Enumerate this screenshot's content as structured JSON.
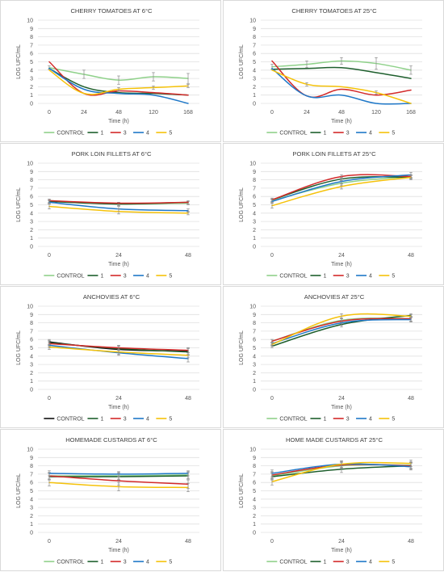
{
  "colors": {
    "CONTROL": "#8fd18a",
    "1": "#1e5f2d",
    "3": "#d32a2a",
    "4": "#1f78c8",
    "5": "#f5c20a",
    "CONTROL_dark": "#111111"
  },
  "chart_data": [
    {
      "type": "line",
      "title": "CHERRY TOMATOES AT 6°C",
      "xlabel": "Time (h)",
      "ylabel": "LOG UFC/mL",
      "categories": [
        "0",
        "24",
        "48",
        "120",
        "168"
      ],
      "ylim": [
        0,
        10
      ],
      "yticks": [
        "0",
        "1",
        "2",
        "3",
        "4",
        "5",
        "6",
        "7",
        "8",
        "9",
        "10"
      ],
      "grid": true,
      "legend": "bottom",
      "legend_labels": [
        "CONTROL",
        "1",
        "3",
        "4",
        "5"
      ],
      "series": [
        {
          "name": "CONTROL",
          "color_key": "CONTROL",
          "values": [
            4.3,
            3.5,
            2.8,
            3.2,
            3.0
          ],
          "err": [
            0.2,
            0.5,
            0.5,
            0.5,
            0.6
          ]
        },
        {
          "name": "1",
          "color_key": "1",
          "values": [
            4.2,
            2.0,
            1.3,
            1.2,
            1.0
          ],
          "err": [
            0,
            0,
            0,
            0,
            0
          ]
        },
        {
          "name": "3",
          "color_key": "3",
          "values": [
            5.0,
            1.2,
            1.5,
            1.3,
            1.0
          ],
          "err": [
            0,
            0,
            0,
            0,
            0
          ]
        },
        {
          "name": "4",
          "color_key": "4",
          "values": [
            4.2,
            1.7,
            1.2,
            1.0,
            0.0
          ],
          "err": [
            0,
            0,
            0,
            0,
            0
          ]
        },
        {
          "name": "5",
          "color_key": "5",
          "values": [
            4.0,
            1.2,
            1.7,
            1.9,
            2.1
          ],
          "err": [
            0,
            0,
            0.2,
            0.2,
            0.2
          ]
        }
      ]
    },
    {
      "type": "line",
      "title": "CHERRY TOMATOES AT 25°C",
      "xlabel": "Time (h)",
      "ylabel": "LOG UFC/mL",
      "categories": [
        "0",
        "24",
        "48",
        "120",
        "168"
      ],
      "ylim": [
        0,
        10
      ],
      "yticks": [
        "0",
        "1",
        "2",
        "3",
        "4",
        "5",
        "6",
        "7",
        "8",
        "9",
        "10"
      ],
      "grid": true,
      "legend": "bottom",
      "legend_labels": [
        "CONTROL",
        "1",
        "3",
        "4",
        "5"
      ],
      "series": [
        {
          "name": "CONTROL",
          "color_key": "CONTROL",
          "values": [
            4.4,
            4.7,
            5.1,
            4.8,
            4.0
          ],
          "err": [
            0.3,
            0.4,
            0.4,
            0.7,
            0.5
          ]
        },
        {
          "name": "1",
          "color_key": "1",
          "values": [
            4.1,
            4.2,
            4.3,
            3.7,
            3.0
          ],
          "err": [
            0,
            0,
            0,
            0,
            0
          ]
        },
        {
          "name": "3",
          "color_key": "3",
          "values": [
            5.1,
            0.9,
            1.7,
            1.0,
            1.6
          ],
          "err": [
            0,
            0,
            0,
            0,
            0
          ]
        },
        {
          "name": "4",
          "color_key": "4",
          "values": [
            4.2,
            0.9,
            1.0,
            0.0,
            0.0
          ],
          "err": [
            0,
            0,
            0,
            0,
            0
          ]
        },
        {
          "name": "5",
          "color_key": "5",
          "values": [
            4.0,
            2.3,
            2.0,
            1.3,
            0.0
          ],
          "err": [
            0,
            0.2,
            0,
            0.2,
            0
          ]
        }
      ]
    },
    {
      "type": "line",
      "title": "PORK LOIN FILLETS AT 6°C",
      "xlabel": "Time (h)",
      "ylabel": "LOG UFC/mL",
      "categories": [
        "0",
        "24",
        "48"
      ],
      "ylim": [
        0,
        10
      ],
      "yticks": [
        "0",
        "1",
        "2",
        "3",
        "4",
        "5",
        "6",
        "7",
        "8",
        "9",
        "10"
      ],
      "grid": true,
      "legend": "bottom",
      "legend_labels": [
        "CONTROL",
        "1",
        "3",
        "4",
        "5"
      ],
      "series": [
        {
          "name": "CONTROL",
          "color_key": "CONTROL",
          "values": [
            5.5,
            5.1,
            5.2
          ],
          "err": [
            0.2,
            0.2,
            0.2
          ]
        },
        {
          "name": "1",
          "color_key": "1",
          "values": [
            5.4,
            5.1,
            5.3
          ],
          "err": [
            0.2,
            0.2,
            0.2
          ]
        },
        {
          "name": "3",
          "color_key": "3",
          "values": [
            5.5,
            5.2,
            5.3
          ],
          "err": [
            0,
            0,
            0
          ]
        },
        {
          "name": "4",
          "color_key": "4",
          "values": [
            5.3,
            4.5,
            4.3
          ],
          "err": [
            0.2,
            0.3,
            0.2
          ]
        },
        {
          "name": "5",
          "color_key": "5",
          "values": [
            4.8,
            4.2,
            4.0
          ],
          "err": [
            0.3,
            0.3,
            0.2
          ]
        }
      ]
    },
    {
      "type": "line",
      "title": "PORK LOIN FILLETS AT 25°C",
      "xlabel": "Time (h)",
      "ylabel": "LOG UFC/mL",
      "categories": [
        "0",
        "24",
        "48"
      ],
      "ylim": [
        0,
        10
      ],
      "yticks": [
        "0",
        "1",
        "2",
        "3",
        "4",
        "5",
        "6",
        "7",
        "8",
        "9",
        "10"
      ],
      "grid": true,
      "legend": "bottom",
      "legend_labels": [
        "CONTROL",
        "1",
        "3",
        "4",
        "5"
      ],
      "series": [
        {
          "name": "CONTROL",
          "color_key": "CONTROL",
          "values": [
            5.5,
            7.6,
            8.4
          ],
          "err": [
            0.2,
            0.3,
            0.2
          ]
        },
        {
          "name": "1",
          "color_key": "1",
          "values": [
            5.6,
            8.1,
            8.3
          ],
          "err": [
            0.2,
            0.2,
            0.2
          ]
        },
        {
          "name": "3",
          "color_key": "3",
          "values": [
            5.6,
            8.4,
            8.4
          ],
          "err": [
            0.2,
            0.2,
            0.2
          ]
        },
        {
          "name": "4",
          "color_key": "4",
          "values": [
            5.4,
            7.8,
            8.6
          ],
          "err": [
            0.2,
            0.3,
            0.3
          ]
        },
        {
          "name": "5",
          "color_key": "5",
          "values": [
            4.9,
            7.2,
            8.3
          ],
          "err": [
            0.3,
            0.3,
            0.3
          ]
        }
      ]
    },
    {
      "type": "line",
      "title": "ANCHOVIES AT 6°C",
      "xlabel": "Time (h)",
      "ylabel": "LOG UFC/mL",
      "categories": [
        "0",
        "24",
        "48"
      ],
      "ylim": [
        0,
        10
      ],
      "yticks": [
        "0",
        "1",
        "2",
        "3",
        "4",
        "5",
        "6",
        "7",
        "8",
        "9",
        "10"
      ],
      "grid": true,
      "legend": "bottom",
      "legend_labels": [
        "CONTROL",
        "1",
        "3",
        "4",
        "5"
      ],
      "legend_control_color_key": "CONTROL_dark",
      "series": [
        {
          "name": "CONTROL",
          "color_key": "CONTROL_dark",
          "values": [
            5.7,
            4.8,
            4.6
          ],
          "err": [
            0.3,
            0.4,
            0.4
          ]
        },
        {
          "name": "1",
          "color_key": "1",
          "values": [
            5.6,
            4.9,
            4.5
          ],
          "err": [
            0.3,
            0.4,
            0.4
          ]
        },
        {
          "name": "3",
          "color_key": "3",
          "values": [
            5.5,
            5.0,
            4.7
          ],
          "err": [
            0.3,
            0.3,
            0.3
          ]
        },
        {
          "name": "4",
          "color_key": "4",
          "values": [
            5.3,
            4.4,
            3.7
          ],
          "err": [
            0.3,
            0.3,
            0.4
          ]
        },
        {
          "name": "5",
          "color_key": "5",
          "values": [
            5.1,
            4.5,
            4.1
          ],
          "err": [
            0.3,
            0.3,
            0.3
          ]
        }
      ]
    },
    {
      "type": "line",
      "title": "ANCHOVIES AT 25°C",
      "xlabel": "Time (h)",
      "ylabel": "LOG UFC/mL",
      "categories": [
        "0",
        "24",
        "48"
      ],
      "ylim": [
        0,
        10
      ],
      "yticks": [
        "0",
        "1",
        "2",
        "3",
        "4",
        "5",
        "6",
        "7",
        "8",
        "9",
        "10"
      ],
      "grid": true,
      "legend": "bottom",
      "legend_labels": [
        "CONTROL",
        "1",
        "3",
        "4",
        "5"
      ],
      "series": [
        {
          "name": "CONTROL",
          "color_key": "CONTROL",
          "values": [
            5.8,
            8.3,
            8.5
          ],
          "err": [
            0.2,
            0.3,
            0.3
          ]
        },
        {
          "name": "1",
          "color_key": "1",
          "values": [
            5.2,
            7.8,
            8.9
          ],
          "err": [
            0.2,
            0.3,
            0.2
          ]
        },
        {
          "name": "3",
          "color_key": "3",
          "values": [
            5.8,
            8.2,
            8.5
          ],
          "err": [
            0.2,
            0.3,
            0.3
          ]
        },
        {
          "name": "4",
          "color_key": "4",
          "values": [
            5.5,
            8.0,
            8.4
          ],
          "err": [
            0.2,
            0.3,
            0.3
          ]
        },
        {
          "name": "5",
          "color_key": "5",
          "values": [
            5.4,
            8.8,
            8.8
          ],
          "err": [
            0.2,
            0.3,
            0.2
          ]
        }
      ]
    },
    {
      "type": "line",
      "title": "HOMEMADE CUSTARDS AT 6°C",
      "xlabel": "Time (h)",
      "ylabel": "LOG UFC/mL",
      "categories": [
        "0",
        "24",
        "48"
      ],
      "ylim": [
        0,
        10
      ],
      "yticks": [
        "0",
        "1",
        "2",
        "3",
        "4",
        "5",
        "6",
        "7",
        "8",
        "9",
        "10"
      ],
      "grid": true,
      "legend": "bottom",
      "legend_labels": [
        "CONTROL",
        "1",
        "3",
        "4",
        "5"
      ],
      "series": [
        {
          "name": "CONTROL",
          "color_key": "CONTROL",
          "values": [
            6.8,
            6.8,
            6.9
          ],
          "err": [
            0.4,
            0.4,
            0.4
          ]
        },
        {
          "name": "1",
          "color_key": "1",
          "values": [
            6.7,
            6.7,
            6.8
          ],
          "err": [
            0.4,
            0.4,
            0.4
          ]
        },
        {
          "name": "3",
          "color_key": "3",
          "values": [
            6.8,
            6.2,
            5.8
          ],
          "err": [
            0.4,
            0.5,
            0.5
          ]
        },
        {
          "name": "4",
          "color_key": "4",
          "values": [
            7.1,
            7.0,
            7.1
          ],
          "err": [
            0.3,
            0.3,
            0.3
          ]
        },
        {
          "name": "5",
          "color_key": "5",
          "values": [
            6.0,
            5.5,
            5.4
          ],
          "err": [
            0.4,
            0.5,
            0.5
          ]
        }
      ]
    },
    {
      "type": "line",
      "title": "HOME MADE CUSTARDS AT 25°C",
      "xlabel": "Time (h)",
      "ylabel": "LOG UFC/mL",
      "categories": [
        "0",
        "24",
        "48"
      ],
      "ylim": [
        0,
        10
      ],
      "yticks": [
        "0",
        "1",
        "2",
        "3",
        "4",
        "5",
        "6",
        "7",
        "8",
        "9",
        "10"
      ],
      "grid": true,
      "legend": "bottom",
      "legend_labels": [
        "CONTROL",
        "1",
        "3",
        "4",
        "5"
      ],
      "series": [
        {
          "name": "CONTROL",
          "color_key": "CONTROL",
          "values": [
            6.8,
            8.0,
            8.1
          ],
          "err": [
            0.4,
            0.4,
            0.4
          ]
        },
        {
          "name": "1",
          "color_key": "1",
          "values": [
            6.7,
            7.6,
            8.0
          ],
          "err": [
            0.4,
            0.4,
            0.4
          ]
        },
        {
          "name": "3",
          "color_key": "3",
          "values": [
            6.9,
            8.1,
            8.0
          ],
          "err": [
            0.4,
            0.4,
            0.4
          ]
        },
        {
          "name": "4",
          "color_key": "4",
          "values": [
            7.1,
            8.2,
            7.9
          ],
          "err": [
            0.4,
            0.4,
            0.4
          ]
        },
        {
          "name": "5",
          "color_key": "5",
          "values": [
            6.1,
            8.2,
            8.3
          ],
          "err": [
            0.4,
            0.4,
            0.4
          ]
        }
      ]
    }
  ]
}
